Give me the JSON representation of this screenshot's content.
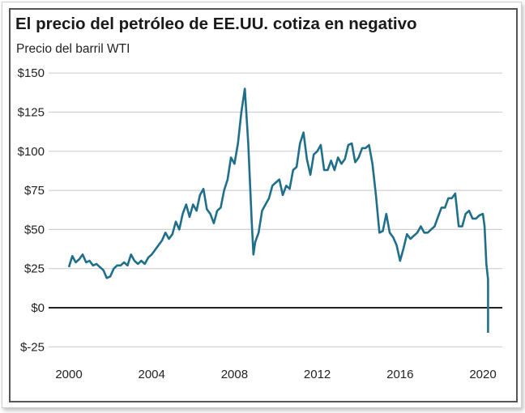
{
  "chart_data": {
    "type": "line",
    "title": "El precio del petróleo de EE.UU. cotiza en negativo",
    "subtitle": "Precio del barril WTI",
    "xlabel": "",
    "ylabel": "",
    "ylim": [
      -25,
      150
    ],
    "xlim": [
      "2000-01",
      "2021-01"
    ],
    "grid": true,
    "line_color": "#1f6f8b",
    "y_ticks": [
      {
        "v": 150,
        "label": "$150"
      },
      {
        "v": 125,
        "label": "$125"
      },
      {
        "v": 100,
        "label": "$100"
      },
      {
        "v": 75,
        "label": "$75"
      },
      {
        "v": 50,
        "label": "$50"
      },
      {
        "v": 25,
        "label": "$25"
      },
      {
        "v": 0,
        "label": "$0"
      },
      {
        "v": -25,
        "label": "$-25"
      }
    ],
    "x_ticks": [
      {
        "v": "2000-01",
        "label": "2000"
      },
      {
        "v": "2004-01",
        "label": "2004"
      },
      {
        "v": "2008-01",
        "label": "2008"
      },
      {
        "v": "2012-01",
        "label": "2012"
      },
      {
        "v": "2016-01",
        "label": "2016"
      },
      {
        "v": "2020-01",
        "label": "2020"
      }
    ],
    "series": [
      {
        "x": [
          "2000-01",
          "2000-03",
          "2000-05",
          "2000-07",
          "2000-09",
          "2000-11",
          "2001-01",
          "2001-03",
          "2001-05",
          "2001-07",
          "2001-09",
          "2001-11",
          "2002-01",
          "2002-03",
          "2002-05",
          "2002-07",
          "2002-09",
          "2002-11",
          "2003-01",
          "2003-03",
          "2003-05",
          "2003-07",
          "2003-09",
          "2003-11",
          "2004-01",
          "2004-03",
          "2004-05",
          "2004-07",
          "2004-09",
          "2004-11",
          "2005-01",
          "2005-03",
          "2005-05",
          "2005-07",
          "2005-09",
          "2005-11",
          "2006-01",
          "2006-03",
          "2006-05",
          "2006-07",
          "2006-09",
          "2006-11",
          "2007-01",
          "2007-03",
          "2007-05",
          "2007-07",
          "2007-09",
          "2007-11",
          "2008-01",
          "2008-03",
          "2008-05",
          "2008-07",
          "2008-09",
          "2008-11",
          "2008-12",
          "2009-01",
          "2009-03",
          "2009-05",
          "2009-07",
          "2009-09",
          "2009-11",
          "2010-01",
          "2010-03",
          "2010-05",
          "2010-07",
          "2010-09",
          "2010-11",
          "2011-01",
          "2011-03",
          "2011-05",
          "2011-07",
          "2011-09",
          "2011-11",
          "2012-01",
          "2012-03",
          "2012-05",
          "2012-07",
          "2012-09",
          "2012-11",
          "2013-01",
          "2013-03",
          "2013-05",
          "2013-07",
          "2013-09",
          "2013-11",
          "2014-01",
          "2014-03",
          "2014-05",
          "2014-07",
          "2014-09",
          "2014-11",
          "2015-01",
          "2015-03",
          "2015-05",
          "2015-07",
          "2015-09",
          "2015-11",
          "2016-01",
          "2016-03",
          "2016-05",
          "2016-07",
          "2016-09",
          "2016-11",
          "2017-01",
          "2017-03",
          "2017-05",
          "2017-07",
          "2017-09",
          "2017-11",
          "2018-01",
          "2018-03",
          "2018-05",
          "2018-07",
          "2018-09",
          "2018-11",
          "2019-01",
          "2019-03",
          "2019-05",
          "2019-07",
          "2019-09",
          "2019-11",
          "2020-01",
          "2020-02",
          "2020-03",
          "2020-04",
          "2020-04"
        ],
        "values": [
          26,
          33,
          29,
          31,
          34,
          29,
          30,
          27,
          28,
          26,
          24,
          19,
          20,
          25,
          27,
          27,
          29,
          27,
          34,
          30,
          28,
          30,
          28,
          32,
          34,
          37,
          40,
          43,
          48,
          44,
          47,
          55,
          50,
          60,
          66,
          58,
          66,
          62,
          72,
          76,
          63,
          60,
          54,
          62,
          64,
          75,
          82,
          96,
          92,
          105,
          125,
          140,
          105,
          55,
          34,
          42,
          48,
          62,
          66,
          70,
          78,
          80,
          82,
          72,
          78,
          76,
          88,
          90,
          105,
          112,
          95,
          85,
          98,
          100,
          104,
          88,
          88,
          94,
          88,
          96,
          92,
          95,
          104,
          105,
          93,
          96,
          102,
          102,
          104,
          92,
          72,
          48,
          49,
          60,
          48,
          45,
          40,
          30,
          38,
          47,
          44,
          46,
          48,
          52,
          48,
          48,
          50,
          52,
          58,
          64,
          64,
          70,
          70,
          73,
          52,
          52,
          60,
          62,
          57,
          57,
          59,
          60,
          52,
          28,
          18,
          -16
        ]
      }
    ]
  }
}
